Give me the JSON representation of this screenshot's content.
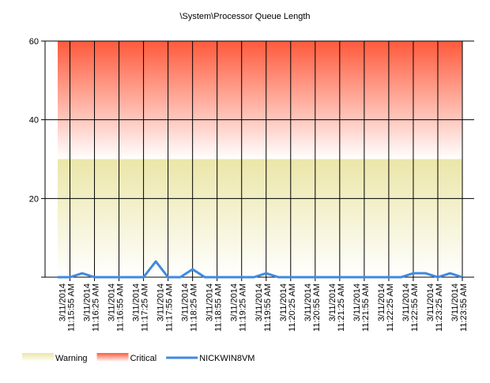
{
  "chart_data": {
    "type": "line",
    "title": "\\System\\Processor Queue Length",
    "categories": [
      null,
      [
        "3/11/2014",
        "11:15:55 AM"
      ],
      null,
      [
        "3/11/2014",
        "11:16:25 AM"
      ],
      null,
      [
        "3/11/2014",
        "11:16:55 AM"
      ],
      null,
      [
        "3/11/2014",
        "11:17:25 AM"
      ],
      null,
      [
        "3/11/2014",
        "11:17:55 AM"
      ],
      null,
      [
        "3/11/2014",
        "11:18:25 AM"
      ],
      null,
      [
        "3/11/2014",
        "11:18:55 AM"
      ],
      null,
      [
        "3/11/2014",
        "11:19:25 AM"
      ],
      null,
      [
        "3/11/2014",
        "11:19:55 AM"
      ],
      null,
      [
        "3/11/2014",
        "11:20:25 AM"
      ],
      null,
      [
        "3/11/2014",
        "11:20:55 AM"
      ],
      null,
      [
        "3/11/2014",
        "11:21:25 AM"
      ],
      null,
      [
        "3/11/2014",
        "11:21:55 AM"
      ],
      null,
      [
        "3/11/2014",
        "11:22:25 AM"
      ],
      null,
      [
        "3/11/2014",
        "11:22:55 AM"
      ],
      null,
      [
        "3/11/2014",
        "11:23:25 AM"
      ],
      null,
      [
        "3/11/2014",
        "11:23:55 AM"
      ]
    ],
    "bands": [
      {
        "name": "Warning",
        "from": 0,
        "to": 30,
        "color": "#ebe6a8"
      },
      {
        "name": "Critical",
        "from": 30,
        "to": 60,
        "color": "#ff5a3c"
      }
    ],
    "series": [
      {
        "name": "NICKWIN8VM",
        "color": "#3f8ae0",
        "values": [
          0,
          0,
          1,
          0,
          0,
          0,
          0,
          0,
          4,
          0,
          0,
          2,
          0,
          0,
          0,
          0,
          0,
          1,
          0,
          0,
          0,
          0,
          0,
          0,
          0,
          0,
          0,
          0,
          0,
          1,
          1,
          0,
          1,
          0
        ]
      }
    ],
    "ylim": [
      0,
      60
    ],
    "yticks": [
      20,
      40,
      60
    ],
    "grid": true,
    "legend": "bottom"
  }
}
